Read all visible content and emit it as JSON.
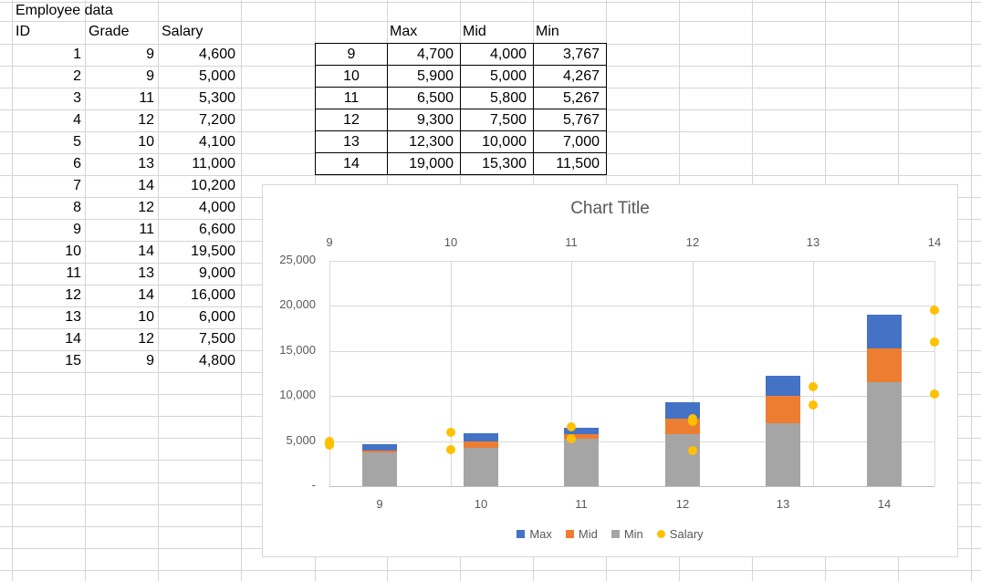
{
  "sheet": {
    "title": "Employee data",
    "employee_table": {
      "columns": [
        "ID",
        "Grade",
        "Salary"
      ],
      "rows": [
        [
          "1",
          "9",
          "4,600"
        ],
        [
          "2",
          "9",
          "5,000"
        ],
        [
          "3",
          "11",
          "5,300"
        ],
        [
          "4",
          "12",
          "7,200"
        ],
        [
          "5",
          "10",
          "4,100"
        ],
        [
          "6",
          "13",
          "11,000"
        ],
        [
          "7",
          "14",
          "10,200"
        ],
        [
          "8",
          "12",
          "4,000"
        ],
        [
          "9",
          "11",
          "6,600"
        ],
        [
          "10",
          "14",
          "19,500"
        ],
        [
          "11",
          "13",
          "9,000"
        ],
        [
          "12",
          "14",
          "16,000"
        ],
        [
          "13",
          "10",
          "6,000"
        ],
        [
          "14",
          "12",
          "7,500"
        ],
        [
          "15",
          "9",
          "4,800"
        ]
      ]
    },
    "summary_table": {
      "columns": [
        "",
        "Max",
        "Mid",
        "Min"
      ],
      "rows": [
        [
          "9",
          "4,700",
          "4,000",
          "3,767"
        ],
        [
          "10",
          "5,900",
          "5,000",
          "4,267"
        ],
        [
          "11",
          "6,500",
          "5,800",
          "5,267"
        ],
        [
          "12",
          "9,300",
          "7,500",
          "5,767"
        ],
        [
          "13",
          "12,300",
          "10,000",
          "7,000"
        ],
        [
          "14",
          "19,000",
          "15,300",
          "11,500"
        ]
      ]
    }
  },
  "chart_data": {
    "type": "combo",
    "title": "Chart Title",
    "categories": [
      "9",
      "10",
      "11",
      "12",
      "13",
      "14"
    ],
    "series": [
      {
        "name": "Max",
        "type": "bar",
        "color": "#4472C4",
        "values": [
          4700,
          5900,
          6500,
          9300,
          12300,
          19000
        ]
      },
      {
        "name": "Mid",
        "type": "bar",
        "color": "#ED7D31",
        "values": [
          4000,
          5000,
          5800,
          7500,
          10000,
          15300
        ]
      },
      {
        "name": "Min",
        "type": "bar",
        "color": "#A5A5A5",
        "values": [
          3767,
          4267,
          5267,
          5767,
          7000,
          11500
        ]
      },
      {
        "name": "Salary",
        "type": "scatter",
        "color": "#FFC000",
        "points": [
          [
            9,
            4600
          ],
          [
            9,
            5000
          ],
          [
            11,
            5300
          ],
          [
            12,
            7200
          ],
          [
            10,
            4100
          ],
          [
            13,
            11000
          ],
          [
            14,
            10200
          ],
          [
            12,
            4000
          ],
          [
            11,
            6600
          ],
          [
            14,
            19500
          ],
          [
            13,
            9000
          ],
          [
            14,
            16000
          ],
          [
            10,
            6000
          ],
          [
            12,
            7500
          ],
          [
            9,
            4800
          ]
        ]
      }
    ],
    "y_axis": {
      "min": 0,
      "max": 25000,
      "step": 5000,
      "tick_labels": [
        "25,000",
        "20,000",
        "15,000",
        "10,000",
        "5,000",
        "-"
      ]
    },
    "x_axis_top": {
      "min": 9,
      "max": 14,
      "ticks": [
        "9",
        "10",
        "11",
        "12",
        "13",
        "14"
      ]
    },
    "x_axis_bottom": {
      "labels": [
        "9",
        "10",
        "11",
        "12",
        "13",
        "14"
      ]
    },
    "legend": {
      "position": "bottom",
      "items": [
        "Max",
        "Mid",
        "Min",
        "Salary"
      ]
    },
    "layout_hints": {
      "bars": "series overlap (Max behind, Mid middle, Min front) so bars read as stacked bands",
      "grid": "horizontal gridlines every 5000; vertical gridlines at top-axis ticks",
      "scatter_x": "Salary points plotted on top value axis 9-14"
    }
  }
}
